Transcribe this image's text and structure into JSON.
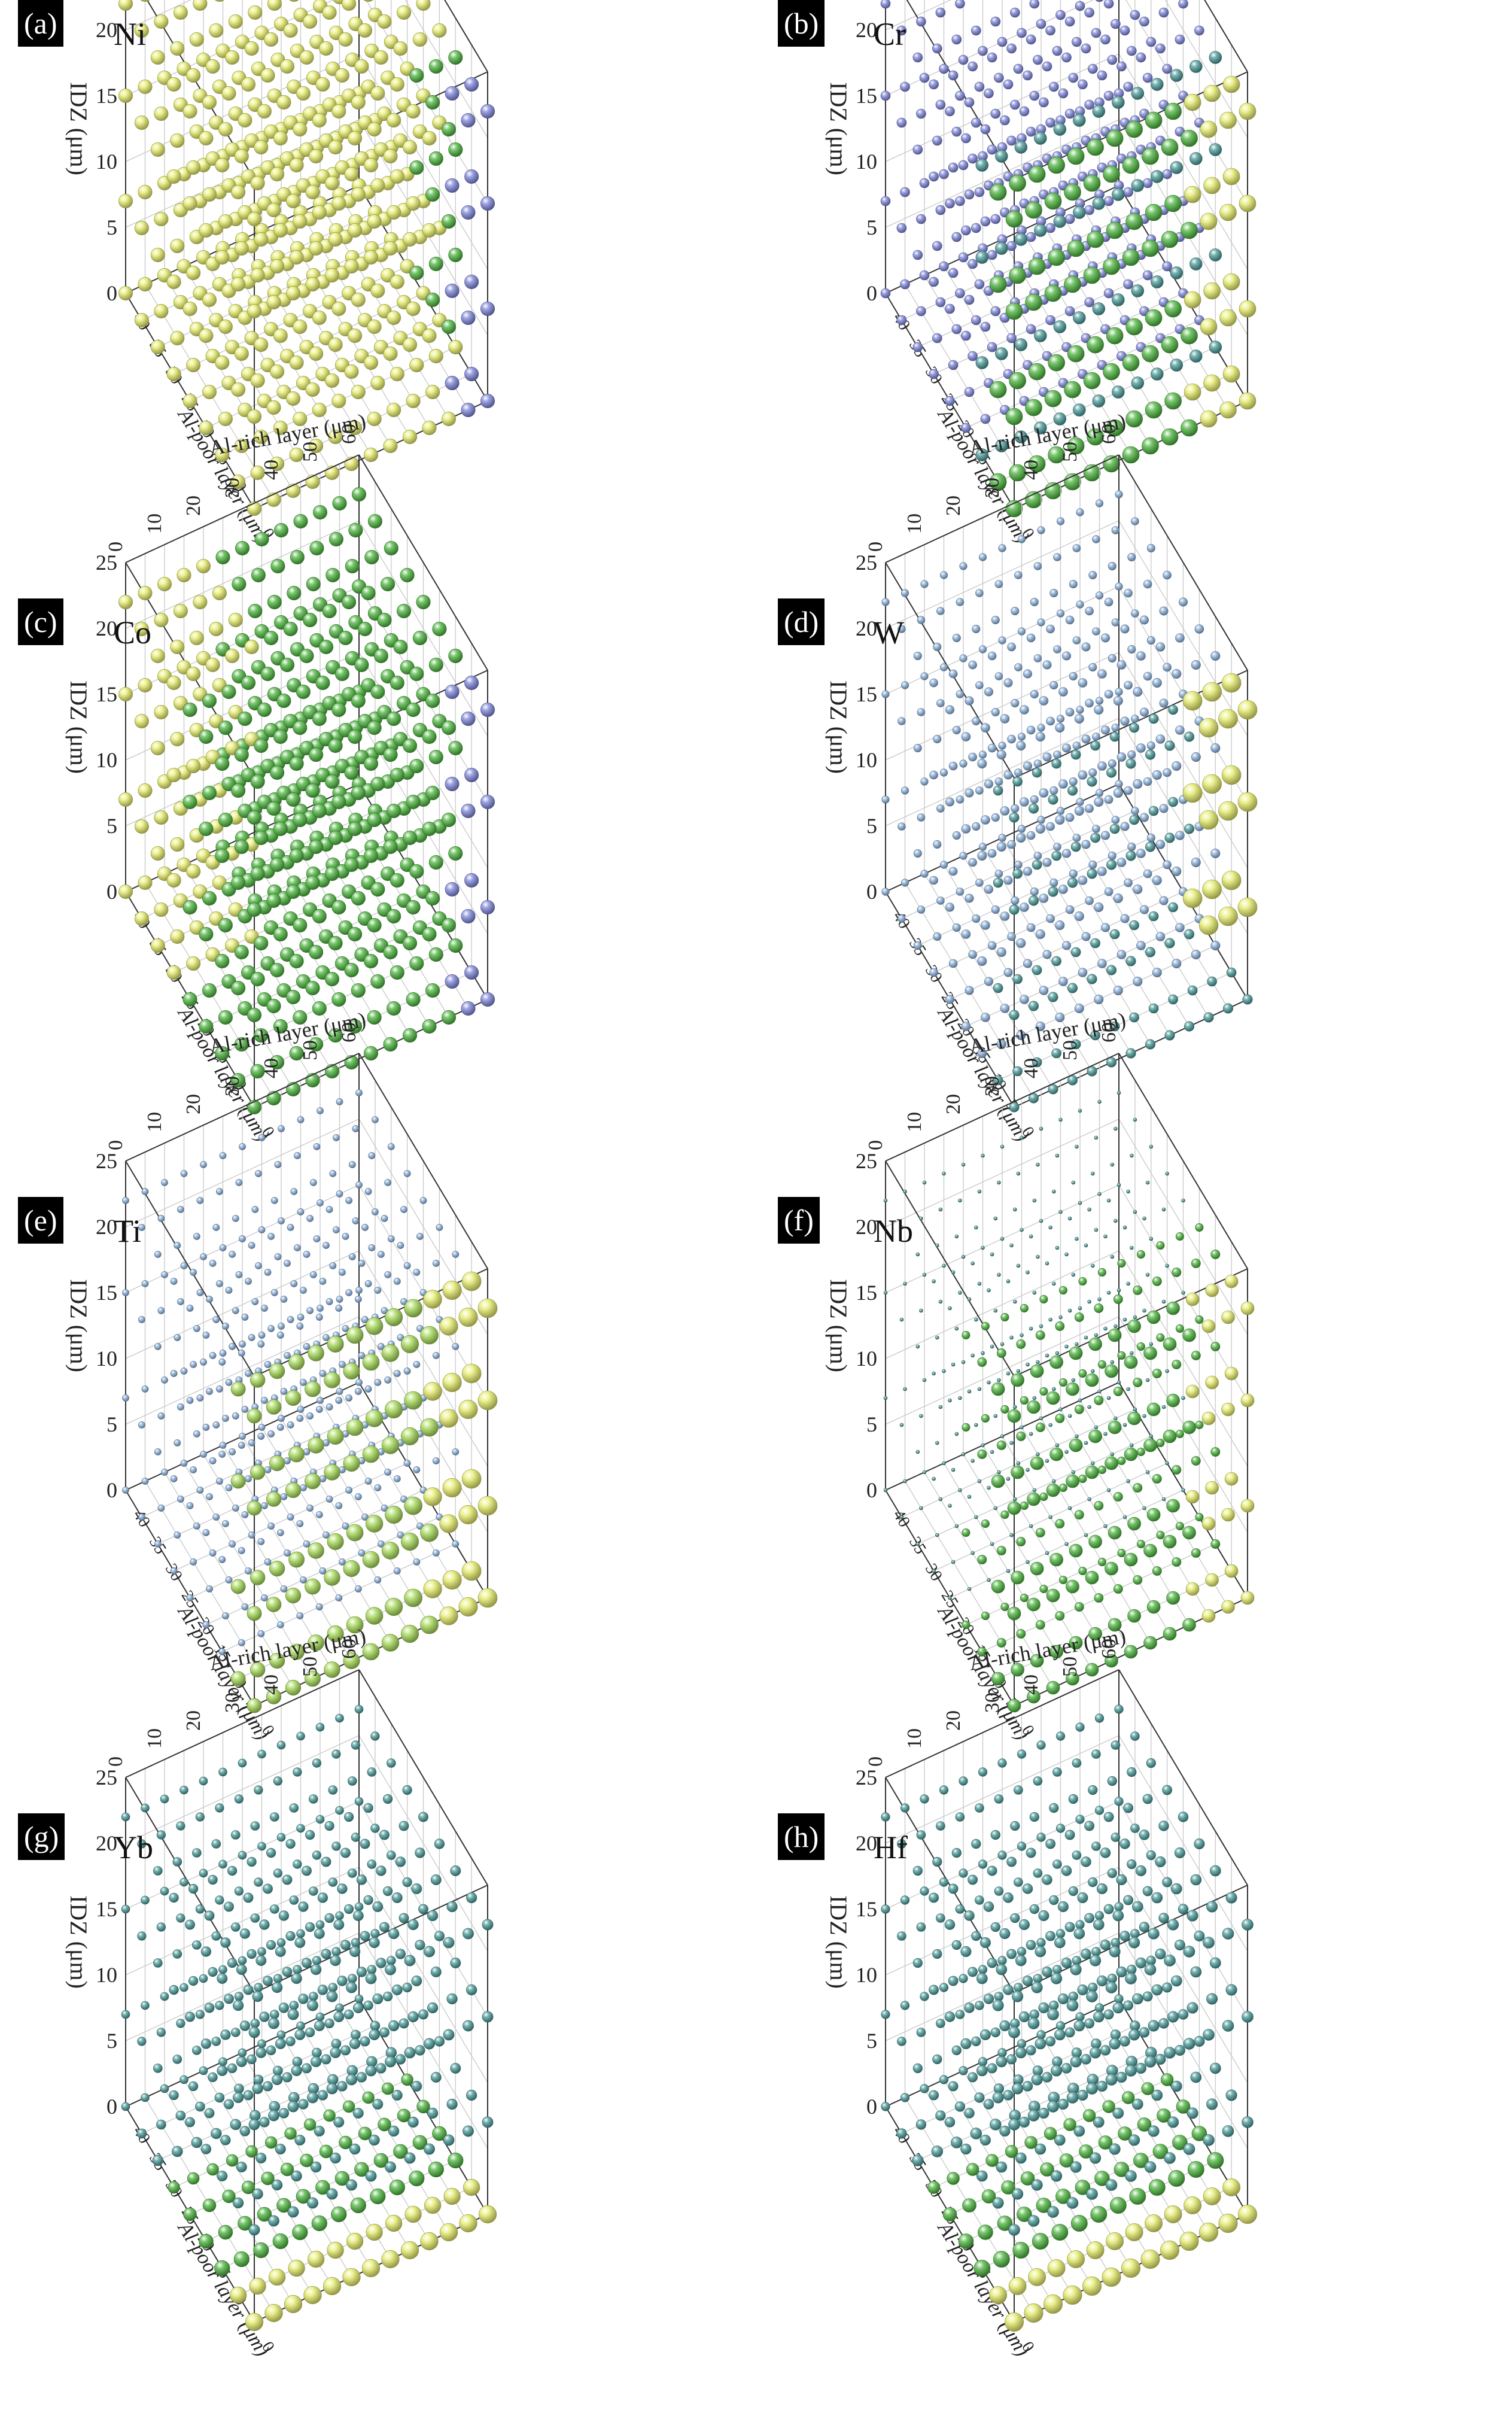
{
  "figure": {
    "shared_axes": {
      "x_title": "Al-rich layer (μm)",
      "x_ticks": [
        "0",
        "10",
        "20",
        "30",
        "40",
        "50",
        "60"
      ],
      "y_title": "Al-poor layer (μm)",
      "y_ticks": [
        "40",
        "35",
        "30",
        "25",
        "20",
        "15",
        "10",
        "5",
        "0"
      ],
      "z_title": "IDZ (μm)",
      "z_ticks": [
        "0",
        "5",
        "10",
        "15",
        "20",
        "25"
      ]
    },
    "colors": {
      "yellow": "#e6ec6a",
      "lightgreen": "#a6d957",
      "green": "#4cb43e",
      "teal": "#4a9a98",
      "blue": "#7e86da",
      "lightblue": "#8cb2dc"
    }
  },
  "chart_data": [
    {
      "type": "scatter3d",
      "panel_label": "(a)",
      "element": "Ni",
      "x_range": [
        0,
        60
      ],
      "y_range": [
        0,
        40
      ],
      "z_range": [
        0,
        25
      ],
      "z_levels": [
        0,
        7,
        15,
        22
      ],
      "pattern": "mostly yellow, small green/blue cluster near Al-rich 50-60 um",
      "size_range": [
        10,
        12
      ],
      "palette": [
        "yellow",
        "green",
        "blue"
      ]
    },
    {
      "type": "scatter3d",
      "panel_label": "(b)",
      "element": "Cr",
      "x_range": [
        0,
        60
      ],
      "y_range": [
        0,
        40
      ],
      "z_range": [
        0,
        25
      ],
      "z_levels": [
        0,
        7,
        15,
        22
      ],
      "pattern": "mostly blue small, large green/yellow along Al-poor edge",
      "size_range": [
        6,
        14
      ],
      "palette": [
        "blue",
        "green",
        "yellow"
      ]
    },
    {
      "type": "scatter3d",
      "panel_label": "(c)",
      "element": "Co",
      "x_range": [
        0,
        60
      ],
      "y_range": [
        0,
        40
      ],
      "z_range": [
        0,
        25
      ],
      "z_levels": [
        0,
        7,
        15,
        22
      ],
      "pattern": "green field, yellow near Al-poor far side, blue near corner",
      "size_range": [
        10,
        12
      ],
      "palette": [
        "green",
        "yellow",
        "blue"
      ]
    },
    {
      "type": "scatter3d",
      "panel_label": "(d)",
      "element": "W",
      "x_range": [
        0,
        60
      ],
      "y_range": [
        0,
        40
      ],
      "z_range": [
        0,
        25
      ],
      "z_levels": [
        0,
        7,
        15,
        22
      ],
      "pattern": "mostly small light-blue, enlarged yellow near Al-rich corner",
      "size_range": [
        3,
        16
      ],
      "palette": [
        "lightblue",
        "green",
        "yellow"
      ]
    },
    {
      "type": "scatter3d",
      "panel_label": "(e)",
      "element": "Ti",
      "x_range": [
        0,
        60
      ],
      "y_range": [
        0,
        40
      ],
      "z_range": [
        0,
        25
      ],
      "z_levels": [
        0,
        7,
        15,
        22
      ],
      "pattern": "large yellow-green along Al-poor edge, tiny blue elsewhere",
      "size_range": [
        3,
        16
      ],
      "palette": [
        "lightblue",
        "lightgreen",
        "yellow"
      ]
    },
    {
      "type": "scatter3d",
      "panel_label": "(f)",
      "element": "Nb",
      "x_range": [
        0,
        60
      ],
      "y_range": [
        0,
        40
      ],
      "z_range": [
        0,
        25
      ],
      "z_levels": [
        0,
        7,
        15,
        22
      ],
      "pattern": "green along Al-poor edge, near-invisible at far Al-poor",
      "size_range": [
        2,
        14
      ],
      "palette": [
        "teal",
        "green",
        "yellow"
      ]
    },
    {
      "type": "scatter3d",
      "panel_label": "(g)",
      "element": "Yb",
      "x_range": [
        0,
        60
      ],
      "y_range": [
        0,
        40
      ],
      "z_range": [
        0,
        25
      ],
      "z_levels": [
        0,
        7,
        15,
        22
      ],
      "pattern": "small teal top layers, growing yellow in bottom layer",
      "size_range": [
        4,
        16
      ],
      "palette": [
        "teal",
        "green",
        "yellow"
      ]
    },
    {
      "type": "scatter3d",
      "panel_label": "(h)",
      "element": "Hf",
      "x_range": [
        0,
        60
      ],
      "y_range": [
        0,
        40
      ],
      "z_range": [
        0,
        25
      ],
      "z_levels": [
        0,
        7,
        15,
        22
      ],
      "pattern": "similar to Yb, green with larger yellow in bottom layer",
      "size_range": [
        4,
        17
      ],
      "palette": [
        "teal",
        "green",
        "yellow"
      ]
    }
  ]
}
